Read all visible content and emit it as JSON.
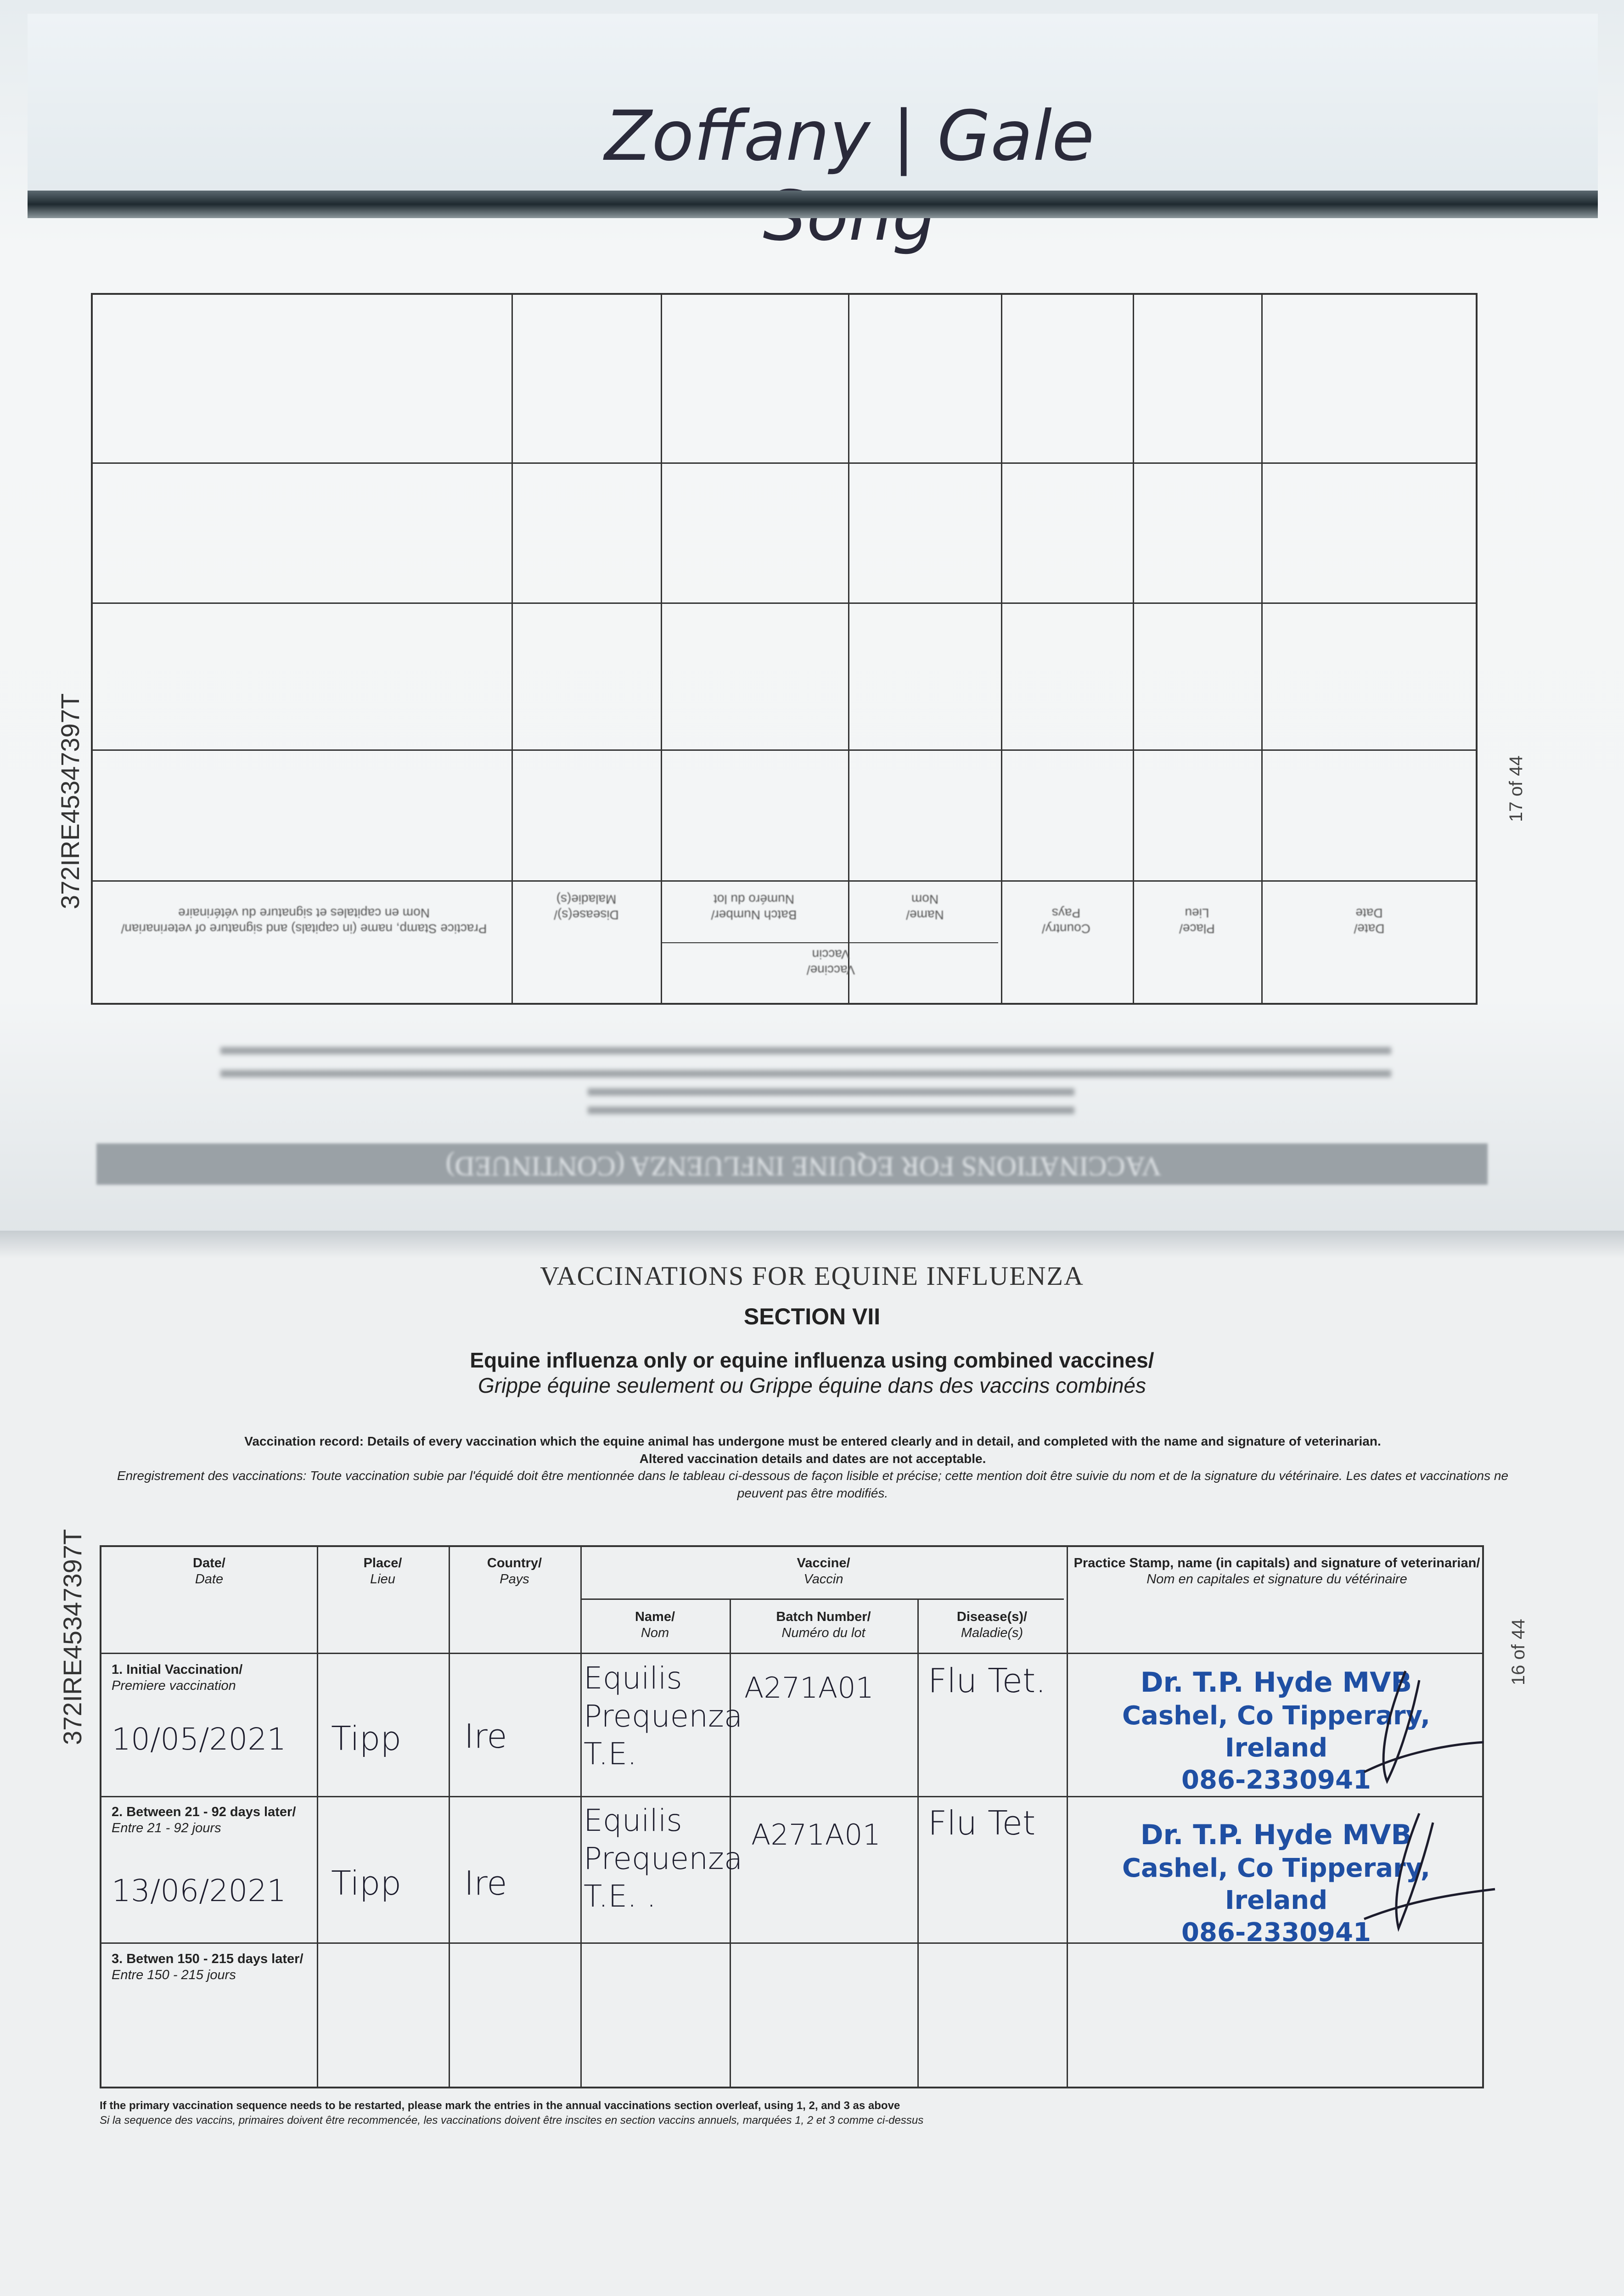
{
  "handwritten_header": "Zoffany | Gale Song",
  "passport_number": "372IRE45347397T",
  "previous_page": {
    "page_label": "17 of 44",
    "section_band": "VACCINATIONS FOR EQUINE INFLUENZA (CONTINUED)",
    "headers": {
      "date": "Date/",
      "date_fr": "Date",
      "place": "Place/",
      "place_fr": "Lieu",
      "country": "Country/",
      "country_fr": "Pays",
      "vaccine": "Vaccine/",
      "vaccine_fr": "Vaccin",
      "name": "Name/",
      "name_fr": "Nom",
      "batch": "Batch Number/",
      "batch_fr": "Numéro du lot",
      "disease": "Disease(s)/",
      "disease_fr": "Maladie(s)",
      "stamp": "Practice Stamp, name (in capitals) and signature of veterinarian/",
      "stamp_fr": "Nom en capitales et signature du vétérinaire"
    }
  },
  "current_page": {
    "page_label": "16 of 44",
    "title": "VACCINATIONS FOR EQUINE INFLUENZA",
    "section": "SECTION VII",
    "subtitle_en": "Equine influenza only or equine influenza using combined vaccines/",
    "subtitle_fr": "Grippe équine seulement ou Grippe équine dans des vaccins combinés",
    "instructions_en_1": "Vaccination record: Details of every vaccination which the equine animal has undergone must be entered clearly and in detail, and completed with the name and signature of veterinarian.",
    "instructions_en_2": "Altered vaccination details and dates are not acceptable.",
    "instructions_fr": "Enregistrement des vaccinations: Toute vaccination subie par l'équidé doit être mentionnée dans le tableau ci-dessous de façon lisible et précise; cette mention doit être suivie du nom et de la signature du vétérinaire. Les dates et vaccinations ne peuvent pas être modifiés.",
    "table": {
      "headers": {
        "date": "Date/",
        "date_fr": "Date",
        "place": "Place/",
        "place_fr": "Lieu",
        "country": "Country/",
        "country_fr": "Pays",
        "vaccine": "Vaccine/",
        "vaccine_fr": "Vaccin",
        "name": "Name/",
        "name_fr": "Nom",
        "batch": "Batch Number/",
        "batch_fr": "Numéro du lot",
        "disease": "Disease(s)/",
        "disease_fr": "Maladie(s)",
        "stamp": "Practice Stamp, name (in capitals) and signature of veterinarian/",
        "stamp_fr": "Nom en capitales et signature du vétérinaire"
      },
      "rows": [
        {
          "label": "1. Initial Vaccination/",
          "label_fr": "Premiere vaccination",
          "date": "10/05/2021",
          "place": "Tipp",
          "country": "Ire",
          "vaccine_name": "Equilis Prequenza T.E.",
          "batch": "A271A01",
          "disease": "Flu Tet.",
          "stamp_name": "Dr. T.P. Hyde MVB",
          "stamp_address": "Cashel, Co Tipperary, Ireland",
          "stamp_phone": "086-2330941"
        },
        {
          "label": "2. Between 21 - 92 days later/",
          "label_fr": "Entre 21 - 92 jours",
          "date": "13/06/2021",
          "place": "Tipp",
          "country": "Ire",
          "vaccine_name": "Equilis Prequenza T.E. .",
          "batch": "A271A01",
          "disease": "Flu Tet",
          "stamp_name": "Dr. T.P. Hyde MVB",
          "stamp_address": "Cashel, Co Tipperary, Ireland",
          "stamp_phone": "086-2330941"
        },
        {
          "label": "3. Betwen 150 - 215 days later/",
          "label_fr": "Entre 150 - 215 jours"
        }
      ]
    },
    "footnote_en": "If the primary vaccination sequence needs to be restarted, please mark the entries in the annual vaccinations section overleaf, using 1, 2, and 3 as above",
    "footnote_fr": "Si la sequence des vaccins, primaires doivent être recommencée, les vaccinations doivent être inscites en section vaccins annuels, marquées 1, 2 et 3 comme ci-dessus"
  },
  "colors": {
    "stamp_ink": "#1f4fa3",
    "paper": "#eef0f1"
  }
}
